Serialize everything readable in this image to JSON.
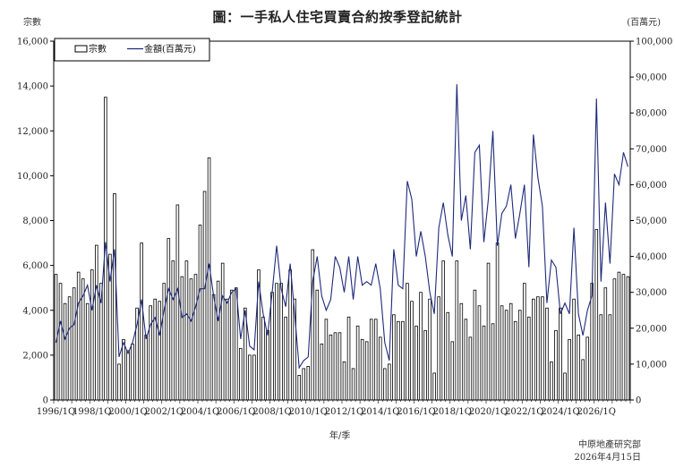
{
  "chart_data": {
    "type": "bar",
    "title": "圖：一手私人住宅買賣合約按季登記統計",
    "xlabel": "年/季",
    "ylabel_left": "宗數",
    "ylabel_right": "(百萬元)",
    "ylim_left": [
      0,
      16000
    ],
    "ylim_right": [
      0,
      100000
    ],
    "yticks_left": [
      "0",
      "2,000",
      "4,000",
      "6,000",
      "8,000",
      "10,000",
      "12,000",
      "14,000",
      "16,000"
    ],
    "yticks_right": [
      "0",
      "10,000",
      "20,000",
      "30,000",
      "40,000",
      "50,000",
      "60,000",
      "70,000",
      "80,000",
      "90,000",
      "100,000"
    ],
    "xtick_labels": [
      "1996/1Q",
      "1998/1Q",
      "2000/1Q",
      "2002/1Q",
      "2004/1Q",
      "2006/1Q",
      "2008/1Q",
      "2010/1Q",
      "2012/1Q",
      "2014/1Q",
      "2016/1Q",
      "2018/1Q",
      "2020/1Q",
      "2022/1Q",
      "2024/1Q",
      "2026/1Q"
    ],
    "legend": {
      "bars": "宗數",
      "line": "金額(百萬元)",
      "position": "top-left"
    },
    "grid": false,
    "series": [
      {
        "name": "宗數",
        "type": "bar",
        "axis": "left",
        "values": [
          5600,
          5200,
          4300,
          4600,
          5000,
          5700,
          5400,
          4300,
          5800,
          6900,
          5200,
          13500,
          6500,
          9200,
          1600,
          2700,
          2200,
          2500,
          4100,
          7000,
          2900,
          4200,
          4500,
          4400,
          5200,
          7200,
          6200,
          8700,
          5500,
          6200,
          5400,
          5600,
          7800,
          9300,
          10800,
          4700,
          5300,
          6100,
          4500,
          4900,
          5000,
          2300,
          4100,
          2000,
          2000,
          5800,
          3700,
          3100,
          4800,
          5200,
          5200,
          3700,
          5800,
          4500,
          1100,
          1400,
          1500,
          6700,
          4900,
          2500,
          3600,
          2900,
          3000,
          3000,
          1700,
          3700,
          1400,
          3300,
          2700,
          2600,
          3600,
          3600,
          2800,
          1400,
          1600,
          3800,
          3500,
          3500,
          5200,
          4400,
          3300,
          4800,
          3100,
          4500,
          1200,
          4600,
          6200,
          3900,
          2600,
          6200,
          4300,
          3600,
          2800,
          4900,
          4200,
          3300,
          6100,
          3400,
          7000,
          4200,
          4000,
          4300,
          3500,
          4000,
          5200,
          3700,
          4500,
          4600,
          4600,
          4100,
          1700,
          3100,
          4100,
          1200,
          2700,
          4500,
          2900,
          1800,
          2800,
          5200,
          7600,
          3800,
          5000,
          3800,
          5400,
          5700,
          5600,
          5500
        ]
      },
      {
        "name": "金額(百萬元)",
        "type": "line",
        "axis": "right",
        "values": [
          16000,
          22000,
          17000,
          20000,
          21000,
          27000,
          29000,
          32000,
          25000,
          32000,
          27000,
          44000,
          33000,
          42000,
          12000,
          16000,
          13000,
          16000,
          21000,
          28000,
          17000,
          21000,
          23000,
          18000,
          25000,
          31000,
          28000,
          31000,
          23000,
          24000,
          22000,
          26000,
          31000,
          31000,
          38000,
          29000,
          22000,
          29000,
          27000,
          30000,
          31000,
          17000,
          25000,
          15000,
          14000,
          33000,
          24000,
          18000,
          30000,
          43000,
          31000,
          26000,
          38000,
          24000,
          9000,
          11000,
          12000,
          33000,
          40000,
          29000,
          25000,
          28000,
          40000,
          37000,
          30000,
          40000,
          28000,
          40000,
          32000,
          33000,
          32000,
          38000,
          31000,
          16000,
          11000,
          42000,
          32000,
          31000,
          61000,
          56000,
          40000,
          47000,
          40000,
          30000,
          24000,
          48000,
          55000,
          46000,
          40000,
          88000,
          50000,
          57000,
          42000,
          69000,
          71000,
          44000,
          56000,
          75000,
          43000,
          52000,
          54000,
          60000,
          45000,
          52000,
          60000,
          37000,
          74000,
          62000,
          54000,
          27000,
          39000,
          37000,
          24000,
          27000,
          24000,
          48000,
          24000,
          18000,
          25000,
          29000,
          84000,
          33000,
          55000,
          38000,
          63000,
          60000,
          69000,
          65000
        ]
      }
    ]
  },
  "footer": {
    "source": "中原地產研究部",
    "date": "2026年4月15日"
  }
}
